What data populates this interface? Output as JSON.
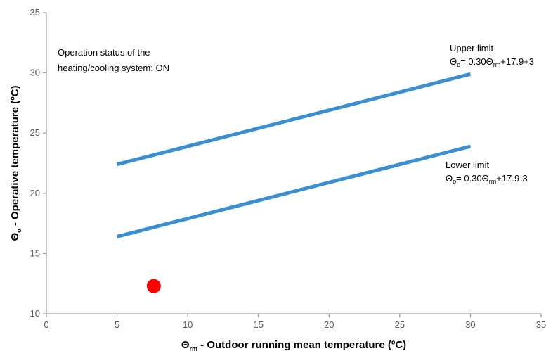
{
  "chart_data": {
    "type": "line",
    "xlabel": {
      "symbol": "Θ",
      "subscript": "rm",
      "text": " - Outdoor running mean temperature (ºC)"
    },
    "ylabel": {
      "symbol": "Θ",
      "subscript": "o",
      "text": " - Operative temperature (ºC)"
    },
    "xlim": [
      0,
      35
    ],
    "ylim": [
      10,
      35
    ],
    "xticks": [
      "0",
      "5",
      "10",
      "15",
      "20",
      "25",
      "30",
      "35"
    ],
    "yticks": [
      "10",
      "15",
      "20",
      "25",
      "30",
      "35"
    ],
    "series": [
      {
        "name": "Upper limit",
        "color": "#3a8fd3",
        "x": [
          5,
          30
        ],
        "y": [
          22.4,
          29.9
        ],
        "formula": {
          "lhs_sub": "o",
          "pre": "= 0.30",
          "var_sub": "rm",
          "post": "+17.9+3"
        }
      },
      {
        "name": "Lower limit",
        "color": "#3a8fd3",
        "x": [
          5,
          30
        ],
        "y": [
          16.4,
          23.9
        ],
        "formula": {
          "lhs_sub": "o",
          "pre": "= 0.30",
          "var_sub": "rm",
          "post": "+17.9-3"
        }
      }
    ],
    "points": [
      {
        "x": 7.6,
        "y": 12.3,
        "color": "#ff0000"
      }
    ],
    "annotations": [
      "Operation status of the",
      "heating/cooling system: ON"
    ],
    "grid": false,
    "legend": "none"
  }
}
